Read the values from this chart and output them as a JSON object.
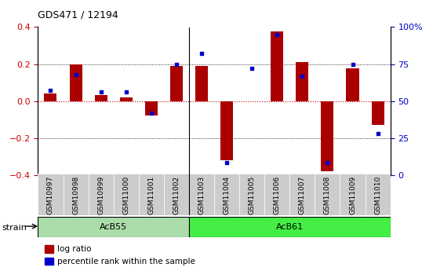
{
  "title": "GDS471 / 12194",
  "samples": [
    "GSM10997",
    "GSM10998",
    "GSM10999",
    "GSM11000",
    "GSM11001",
    "GSM11002",
    "GSM11003",
    "GSM11004",
    "GSM11005",
    "GSM11006",
    "GSM11007",
    "GSM11008",
    "GSM11009",
    "GSM11010"
  ],
  "log_ratio": [
    0.04,
    0.2,
    0.03,
    0.02,
    -0.08,
    0.19,
    0.19,
    -0.32,
    0.0,
    0.375,
    0.21,
    -0.38,
    0.175,
    -0.13
  ],
  "percentile_rank": [
    57,
    68,
    56,
    56,
    42,
    75,
    82,
    8,
    72,
    95,
    67,
    8,
    75,
    28
  ],
  "groups": [
    {
      "label": "AcB55",
      "start": 0,
      "end": 5,
      "color": "#aaddaa"
    },
    {
      "label": "AcB61",
      "start": 6,
      "end": 13,
      "color": "#44ee44"
    }
  ],
  "group_separator": 5.5,
  "ylim_left": [
    -0.4,
    0.4
  ],
  "ylim_right": [
    0,
    100
  ],
  "yticks_left": [
    -0.4,
    -0.2,
    0.0,
    0.2,
    0.4
  ],
  "yticks_right": [
    0,
    25,
    50,
    75,
    100
  ],
  "bar_color": "#aa0000",
  "dot_color": "#0000cc",
  "background_color": "#ffffff",
  "plot_bg": "#ffffff",
  "zero_line_color": "#cc0000",
  "strain_label": "strain",
  "legend_log_ratio": "log ratio",
  "legend_percentile": "percentile rank within the sample",
  "cell_bg": "#cccccc",
  "bar_width": 0.5
}
